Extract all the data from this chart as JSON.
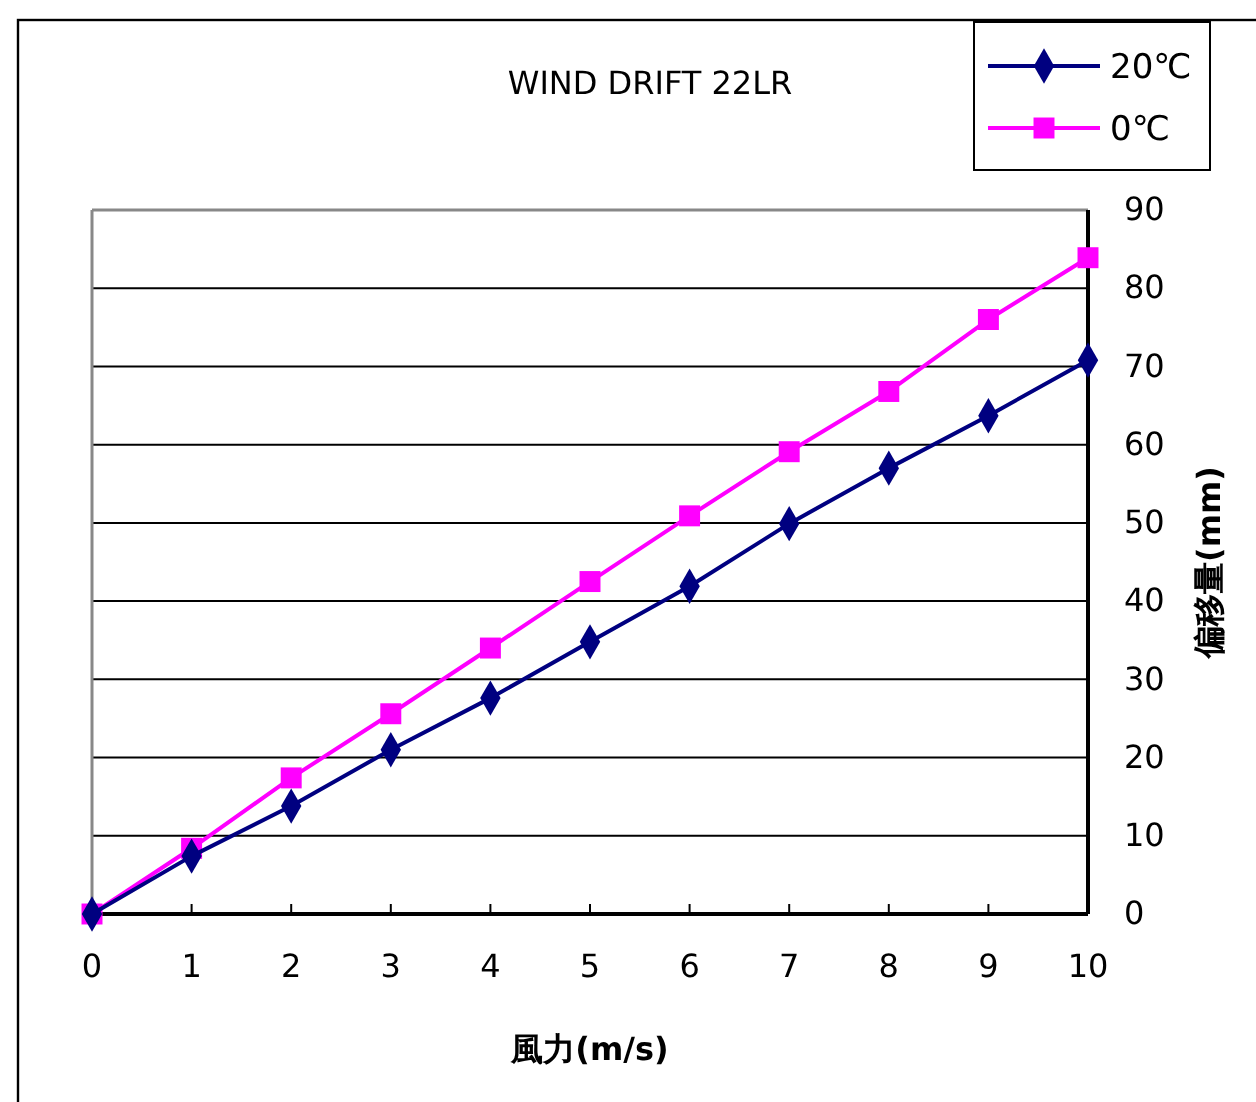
{
  "chart_data": {
    "type": "line",
    "title": "WIND DRIFT 22LR",
    "xlabel": "風力(m/s)",
    "ylabel": "偏移量(mm)",
    "x": [
      0,
      1,
      2,
      3,
      4,
      5,
      6,
      7,
      8,
      9,
      10
    ],
    "series": [
      {
        "name": "20℃",
        "color": "#000080",
        "marker": "diamond",
        "values": [
          0,
          7.4,
          13.8,
          21,
          27.6,
          34.8,
          41.9,
          49.9,
          57,
          63.7,
          70.8
        ]
      },
      {
        "name": "0℃",
        "color": "#ff00ff",
        "marker": "square",
        "values": [
          0,
          8.4,
          17.4,
          25.6,
          34,
          42.5,
          50.9,
          59.1,
          66.8,
          76,
          83.9
        ]
      }
    ],
    "xlim": [
      0,
      10
    ],
    "xticks": [
      0,
      1,
      2,
      3,
      4,
      5,
      6,
      7,
      8,
      9,
      10
    ],
    "ylim": [
      0,
      90
    ],
    "yticks": [
      0,
      10,
      20,
      30,
      40,
      50,
      60,
      70,
      80,
      90
    ],
    "grid": "y",
    "legend": "top right"
  }
}
